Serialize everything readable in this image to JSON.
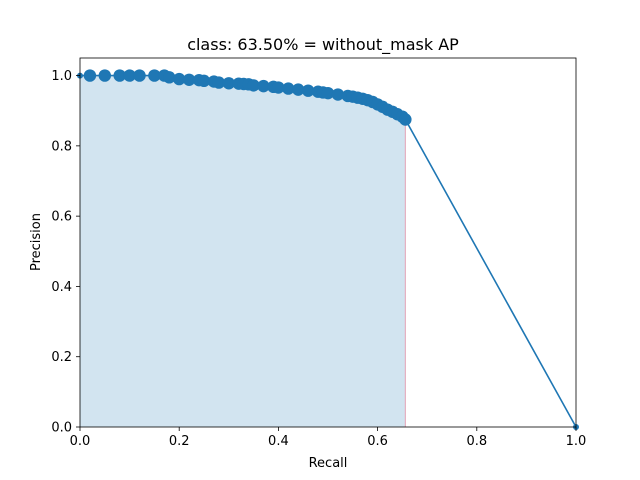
{
  "chart_data": {
    "type": "line",
    "title": "class: 63.50% = without_mask AP",
    "xlabel": "Recall",
    "ylabel": "Precision",
    "xlim": [
      0.0,
      1.0
    ],
    "ylim": [
      0.0,
      1.05
    ],
    "xticks": [
      "0.0",
      "0.2",
      "0.4",
      "0.6",
      "0.8",
      "1.0"
    ],
    "yticks": [
      "0.0",
      "0.2",
      "0.4",
      "0.6",
      "0.8",
      "1.0"
    ],
    "grid": false,
    "legend": "none",
    "colors": {
      "line": "#1f77b4",
      "fill": "#1f77b4",
      "fill_alpha": 0.2,
      "vertical_edge": "#e6b0c0"
    },
    "series": [
      {
        "style": "line-with-markers",
        "x": [
          0.0,
          0.02,
          0.05,
          0.08,
          0.1,
          0.12,
          0.15,
          0.17,
          0.18,
          0.2,
          0.22,
          0.24,
          0.25,
          0.27,
          0.28,
          0.3,
          0.32,
          0.33,
          0.34,
          0.35,
          0.37,
          0.39,
          0.4,
          0.42,
          0.44,
          0.46,
          0.48,
          0.49,
          0.5,
          0.52,
          0.54,
          0.55,
          0.56,
          0.57,
          0.58,
          0.59,
          0.6,
          0.61,
          0.62,
          0.63,
          0.64,
          0.65,
          0.656,
          1.0
        ],
        "y": [
          1.0,
          1.0,
          1.0,
          1.0,
          1.0,
          1.0,
          1.0,
          1.0,
          0.995,
          0.99,
          0.988,
          0.987,
          0.985,
          0.983,
          0.98,
          0.978,
          0.977,
          0.976,
          0.975,
          0.972,
          0.97,
          0.968,
          0.966,
          0.963,
          0.96,
          0.957,
          0.954,
          0.952,
          0.95,
          0.946,
          0.942,
          0.94,
          0.937,
          0.934,
          0.93,
          0.925,
          0.918,
          0.911,
          0.903,
          0.897,
          0.89,
          0.883,
          0.875,
          0.0
        ]
      }
    ],
    "filled_area": {
      "x_to": 0.656,
      "y_top": [
        1.0,
        1.0,
        1.0,
        1.0,
        1.0,
        1.0,
        1.0,
        1.0,
        0.995,
        0.99,
        0.988,
        0.987,
        0.985,
        0.983,
        0.98,
        0.978,
        0.977,
        0.976,
        0.975,
        0.972,
        0.97,
        0.968,
        0.966,
        0.963,
        0.96,
        0.957,
        0.954,
        0.952,
        0.95,
        0.946,
        0.942,
        0.94,
        0.937,
        0.934,
        0.93,
        0.925,
        0.918,
        0.911,
        0.903,
        0.897,
        0.89,
        0.883,
        0.875
      ]
    }
  }
}
